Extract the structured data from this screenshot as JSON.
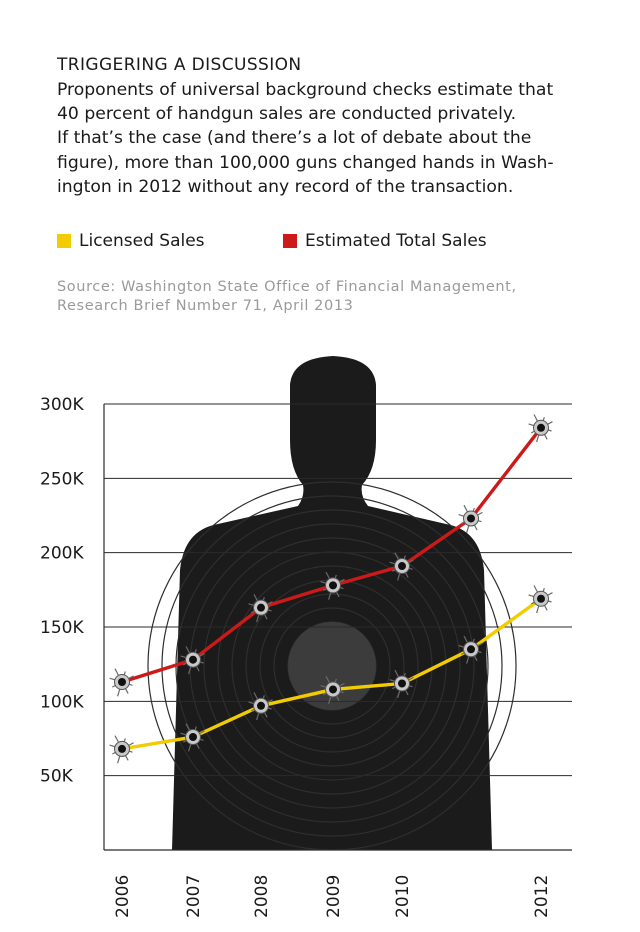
{
  "header": {
    "title": "TRIGGERING A DISCUSSION",
    "lines": [
      "Proponents of universal background checks estimate that",
      "40 percent of handgun sales are conducted privately.",
      "If that’s the case (and there’s a lot of debate about the",
      "figure), more than 100,000 guns changed hands in Wash-",
      "ington in 2012 without any record of the transaction."
    ]
  },
  "source": {
    "line1": "Source: Washington State Office of Financial Management,",
    "line2": "Research Brief Number 71, April 2013"
  },
  "colors": {
    "licensed": "#f2cb00",
    "estimated": "#cc1a1a",
    "silhouette": "#1b1b1b",
    "grid": "#2a2a2a"
  },
  "chart_data": {
    "type": "line",
    "title": "TRIGGERING A DISCUSSION",
    "x": [
      2006,
      2007,
      2008,
      2009,
      2010,
      2011,
      2012
    ],
    "x_tick_labels": [
      "2006",
      "2007",
      "2008",
      "2009",
      "2010",
      "2012"
    ],
    "y_tick_labels": [
      "300K",
      "250K",
      "200K",
      "150K",
      "100K",
      "50K"
    ],
    "y_ticks": [
      300000,
      250000,
      200000,
      150000,
      100000,
      50000
    ],
    "ylim": [
      0,
      300000
    ],
    "grid": true,
    "legend_position": "top-left",
    "series": [
      {
        "name": "Licensed Sales",
        "color": "#f2cb00",
        "values": [
          68000,
          76000,
          97000,
          108000,
          112000,
          135000,
          169000
        ]
      },
      {
        "name": "Estimated Total Sales",
        "color": "#cc1a1a",
        "values": [
          113000,
          128000,
          163000,
          178000,
          191000,
          223000,
          284000
        ]
      }
    ]
  }
}
